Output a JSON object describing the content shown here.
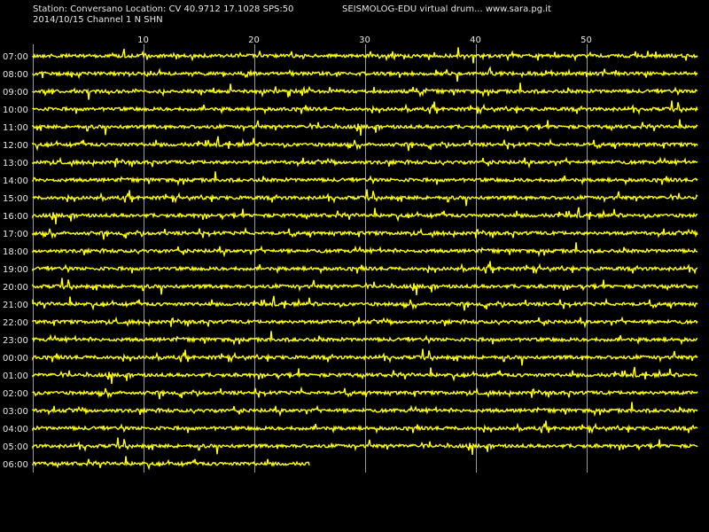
{
  "header": {
    "station_line": "Station: Conversano Location: CV 40.9712 17.1028 SPS:50",
    "date_line": "2014/10/15  Channel 1 N SHN",
    "brand_line": "SEISMOLOG-EDU virtual drum... www.sara.pg.it"
  },
  "colors": {
    "background": "#000000",
    "trace": "#ffff00",
    "grid": "#9a9a9a",
    "text": "#e6e6e6"
  },
  "chart_data": {
    "type": "line",
    "title": "",
    "xlabel": "",
    "ylabel": "",
    "x_ticks": [
      10,
      20,
      30,
      40,
      50
    ],
    "xlim": [
      0,
      60
    ],
    "rows": [
      {
        "label": "07:00",
        "minutes": 60
      },
      {
        "label": "08:00",
        "minutes": 60
      },
      {
        "label": "09:00",
        "minutes": 60
      },
      {
        "label": "10:00",
        "minutes": 60
      },
      {
        "label": "11:00",
        "minutes": 60
      },
      {
        "label": "12:00",
        "minutes": 60
      },
      {
        "label": "13:00",
        "minutes": 60
      },
      {
        "label": "14:00",
        "minutes": 60
      },
      {
        "label": "15:00",
        "minutes": 60
      },
      {
        "label": "16:00",
        "minutes": 60
      },
      {
        "label": "17:00",
        "minutes": 60
      },
      {
        "label": "18:00",
        "minutes": 60
      },
      {
        "label": "19:00",
        "minutes": 60
      },
      {
        "label": "20:00",
        "minutes": 60
      },
      {
        "label": "21:00",
        "minutes": 60
      },
      {
        "label": "22:00",
        "minutes": 60
      },
      {
        "label": "23:00",
        "minutes": 60
      },
      {
        "label": "00:00",
        "minutes": 60
      },
      {
        "label": "01:00",
        "minutes": 60
      },
      {
        "label": "02:00",
        "minutes": 60
      },
      {
        "label": "03:00",
        "minutes": 60
      },
      {
        "label": "04:00",
        "minutes": 60
      },
      {
        "label": "05:00",
        "minutes": 60
      },
      {
        "label": "06:00",
        "minutes": 25
      }
    ],
    "grid": true
  }
}
